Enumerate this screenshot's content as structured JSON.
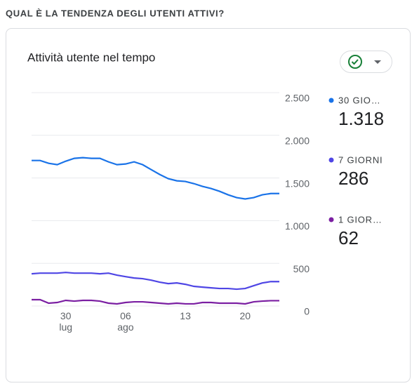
{
  "header": {
    "title": "QUAL È LA TENDENZA DEGLI UTENTI ATTIVI?"
  },
  "card": {
    "title": "Attività utente nel tempo"
  },
  "chart_data": {
    "type": "line",
    "categories": [
      null,
      null,
      null,
      null,
      "30\nlug",
      null,
      null,
      null,
      null,
      null,
      null,
      "06\nago",
      null,
      null,
      null,
      null,
      null,
      null,
      "13",
      null,
      null,
      null,
      null,
      null,
      null,
      "20",
      null,
      null,
      null,
      null
    ],
    "series": [
      {
        "name": "30 GIO…",
        "color": "#1a73e8",
        "latest": 1318,
        "latest_label": "1.318",
        "values": [
          1705,
          1705,
          1672,
          1656,
          1697,
          1730,
          1738,
          1730,
          1730,
          1689,
          1656,
          1664,
          1689,
          1656,
          1598,
          1541,
          1492,
          1467,
          1459,
          1434,
          1402,
          1377,
          1344,
          1303,
          1270,
          1254,
          1270,
          1303,
          1318,
          1318
        ]
      },
      {
        "name": "7 GIORNI",
        "color": "#4f46e5",
        "latest": 286,
        "latest_label": "286",
        "values": [
          377,
          385,
          385,
          385,
          393,
          385,
          385,
          385,
          377,
          385,
          361,
          344,
          328,
          320,
          303,
          279,
          262,
          270,
          254,
          230,
          221,
          213,
          205,
          205,
          197,
          205,
          238,
          270,
          286,
          286
        ]
      },
      {
        "name": "1 GIOR…",
        "color": "#7b1fa2",
        "latest": 62,
        "latest_label": "62",
        "values": [
          74,
          74,
          33,
          41,
          66,
          57,
          66,
          66,
          57,
          33,
          25,
          41,
          49,
          49,
          41,
          33,
          25,
          33,
          25,
          25,
          41,
          41,
          33,
          33,
          33,
          25,
          49,
          57,
          62,
          62
        ]
      }
    ],
    "ylim": [
      0,
      2500
    ],
    "yticks": [
      0,
      500,
      {
        "value": 1000,
        "label": "1.000"
      },
      {
        "value": 1500,
        "label": "1.500"
      },
      {
        "value": 2000,
        "label": "2.000"
      },
      {
        "value": 2500,
        "label": "2.500"
      }
    ],
    "grid": true
  }
}
